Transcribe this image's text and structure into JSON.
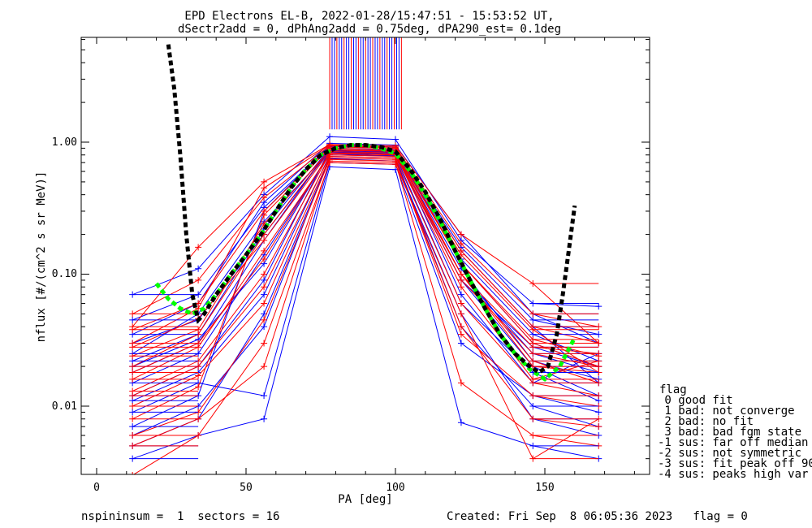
{
  "chart_data": {
    "type": "line",
    "title_line1": "EPD Electrons EL-B, 2022-01-28/15:47:51 - 15:53:52 UT,",
    "title_line2": "dSectr2add = 0, dPhAng2add = 0.75deg, dPA290_est=   0.1deg",
    "xlabel": "PA [deg]",
    "ylabel": "nflux [#/(cm^2 s sr MeV)]",
    "xlim": [
      -5,
      185
    ],
    "ylim": [
      0.003,
      5.8
    ],
    "yscale": "log",
    "x_ticks": [
      "0",
      "50",
      "100",
      "150"
    ],
    "y_ticks": [
      "0.01",
      "0.10",
      "1.00"
    ],
    "legend_title": "flag",
    "legend": [
      " 0 good fit",
      " 1 bad: not converge",
      " 2 bad: no fit",
      " 3 bad: bad fgm state",
      "-1 sus: far off median",
      "-2 sus: not symmetric",
      "-3 sus: fit peak off 90",
      "-4 sus: peaks high var"
    ],
    "footer_left": "nspininsum =  1  sectors = 16",
    "footer_right": "Created: Fri Sep  8 06:05:36 2023   flag = 0",
    "pa_bins": [
      12,
      34,
      56,
      78,
      100,
      122,
      146,
      168
    ],
    "series": [
      {
        "color": "#0000ff",
        "values": [
          [
            0.018,
            0.03,
            0.18,
            0.9,
            0.88,
            0.12,
            0.03,
            0.02
          ],
          [
            0.007,
            0.012,
            0.3,
            0.95,
            0.92,
            0.15,
            0.04,
            0.015
          ],
          [
            0.025,
            0.05,
            0.25,
            0.85,
            0.8,
            0.09,
            0.02,
            0.012
          ],
          [
            0.012,
            0.02,
            0.09,
            0.88,
            0.85,
            0.07,
            0.015,
            0.025
          ],
          [
            0.005,
            0.008,
            0.05,
            0.75,
            0.72,
            0.05,
            0.008,
            0.006
          ],
          [
            0.035,
            0.06,
            0.35,
            0.98,
            0.95,
            0.2,
            0.05,
            0.03
          ],
          [
            0.015,
            0.025,
            0.14,
            0.82,
            0.78,
            0.1,
            0.025,
            0.018
          ],
          [
            0.009,
            0.015,
            0.012,
            0.7,
            0.68,
            0.03,
            0.012,
            0.009
          ],
          [
            0.07,
            0.11,
            0.4,
            1.1,
            1.05,
            0.18,
            0.06,
            0.057
          ],
          [
            0.022,
            0.035,
            0.22,
            0.9,
            0.87,
            0.13,
            0.035,
            0.022
          ],
          [
            0.004,
            0.006,
            0.008,
            0.65,
            0.62,
            0.0075,
            0.005,
            0.004
          ],
          [
            0.03,
            0.045,
            0.2,
            0.86,
            0.84,
            0.11,
            0.022,
            0.016
          ],
          [
            0.011,
            0.018,
            0.07,
            0.8,
            0.79,
            0.06,
            0.018,
            0.011
          ],
          [
            0.045,
            0.07,
            0.32,
            0.93,
            0.9,
            0.16,
            0.045,
            0.035
          ],
          [
            0.006,
            0.01,
            0.04,
            0.78,
            0.76,
            0.04,
            0.01,
            0.007
          ],
          [
            0.02,
            0.032,
            0.12,
            0.84,
            0.82,
            0.09,
            0.028,
            0.02
          ]
        ]
      },
      {
        "color": "#ff0000",
        "values": [
          [
            0.02,
            0.035,
            0.2,
            0.88,
            0.86,
            0.1,
            0.028,
            0.025
          ],
          [
            0.008,
            0.014,
            0.28,
            0.9,
            0.88,
            0.14,
            0.038,
            0.018
          ],
          [
            0.03,
            0.055,
            0.45,
            0.95,
            0.9,
            0.12,
            0.03,
            0.02
          ],
          [
            0.013,
            0.022,
            0.1,
            0.82,
            0.8,
            0.08,
            0.016,
            0.022
          ],
          [
            0.003,
            0.006,
            0.03,
            0.7,
            0.68,
            0.05,
            0.004,
            0.008
          ],
          [
            0.04,
            0.16,
            0.5,
            0.96,
            0.94,
            0.2,
            0.085,
            0.03
          ],
          [
            0.016,
            0.028,
            0.15,
            0.8,
            0.78,
            0.1,
            0.022,
            0.015
          ],
          [
            0.01,
            0.017,
            0.06,
            0.76,
            0.74,
            0.035,
            0.012,
            0.01
          ],
          [
            0.05,
            0.09,
            0.38,
            0.94,
            0.92,
            0.17,
            0.05,
            0.04
          ],
          [
            0.024,
            0.038,
            0.24,
            0.87,
            0.85,
            0.12,
            0.032,
            0.024
          ],
          [
            0.005,
            0.008,
            0.02,
            0.72,
            0.7,
            0.015,
            0.006,
            0.005
          ],
          [
            0.028,
            0.046,
            0.18,
            0.85,
            0.83,
            0.1,
            0.02,
            0.018
          ],
          [
            0.012,
            0.02,
            0.08,
            0.78,
            0.76,
            0.06,
            0.015,
            0.012
          ],
          [
            0.006,
            0.009,
            0.045,
            0.74,
            0.72,
            0.04,
            0.008,
            0.007
          ],
          [
            0.018,
            0.03,
            0.13,
            0.83,
            0.81,
            0.09,
            0.025,
            0.02
          ],
          [
            0.038,
            0.06,
            0.3,
            0.92,
            0.9,
            0.15,
            0.04,
            0.03
          ]
        ]
      }
    ],
    "black_dotted_curve": {
      "color": "#000000",
      "x": [
        24,
        26,
        28,
        30,
        32,
        34,
        36,
        40,
        45,
        50,
        55,
        60,
        65,
        70,
        75,
        80,
        85,
        90,
        95,
        100,
        105,
        110,
        115,
        120,
        125,
        130,
        135,
        140,
        145,
        148,
        151,
        154,
        156,
        158,
        160
      ],
      "y": [
        5.5,
        2.5,
        0.8,
        0.2,
        0.07,
        0.045,
        0.05,
        0.07,
        0.1,
        0.14,
        0.2,
        0.3,
        0.45,
        0.62,
        0.8,
        0.9,
        0.95,
        0.95,
        0.92,
        0.85,
        0.62,
        0.42,
        0.26,
        0.15,
        0.09,
        0.055,
        0.035,
        0.025,
        0.02,
        0.018,
        0.02,
        0.035,
        0.07,
        0.15,
        0.33
      ]
    },
    "green_dotted_curve": {
      "color": "#00ff00",
      "x": [
        20,
        24,
        28,
        32,
        36,
        40,
        45,
        50,
        55,
        60,
        65,
        70,
        75,
        80,
        85,
        90,
        95,
        100,
        105,
        110,
        115,
        120,
        125,
        130,
        135,
        140,
        145,
        150,
        155,
        160
      ],
      "y": [
        0.085,
        0.065,
        0.055,
        0.05,
        0.055,
        0.07,
        0.1,
        0.14,
        0.2,
        0.3,
        0.45,
        0.62,
        0.8,
        0.9,
        0.95,
        0.95,
        0.9,
        0.82,
        0.6,
        0.4,
        0.25,
        0.15,
        0.09,
        0.055,
        0.035,
        0.025,
        0.019,
        0.016,
        0.02,
        0.033
      ]
    },
    "saturated_band": {
      "x_range": [
        78,
        102
      ],
      "y_from": 1.25
    }
  }
}
